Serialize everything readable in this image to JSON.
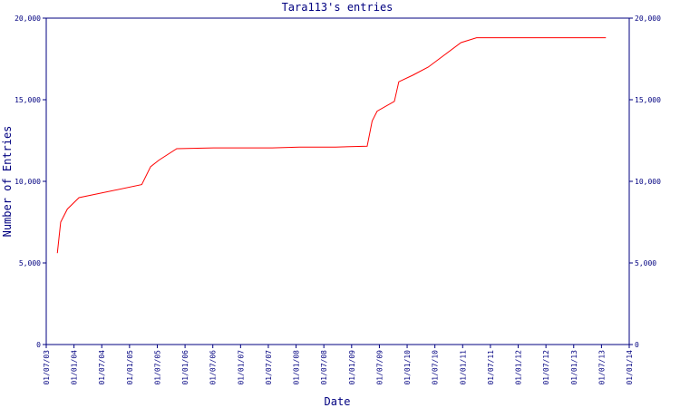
{
  "chart_data": {
    "type": "line",
    "title": "Tara113's entries",
    "x_label": "Date",
    "y_label": "Number of Entries",
    "x": [
      2003.7,
      2003.76,
      2003.88,
      2004.09,
      2005.22,
      2005.38,
      2005.53,
      2005.85,
      2006.51,
      2007.57,
      2008.06,
      2008.71,
      2009.28,
      2009.37,
      2009.46,
      2009.77,
      2009.85,
      2010.1,
      2010.38,
      2010.97,
      2011.25,
      2013.58
    ],
    "series": [
      {
        "name": "Tara113",
        "color": "#ff0000",
        "values": [
          5600,
          7500,
          8300,
          9000,
          9800,
          10900,
          11300,
          12000,
          12050,
          12050,
          12100,
          12100,
          12150,
          13700,
          14300,
          14900,
          16100,
          16500,
          17000,
          18500,
          18800,
          18800
        ]
      }
    ],
    "xlim": [
      2003.5,
      2014.0
    ],
    "xticks": [
      {
        "value": 2003.5,
        "label": "01/07/03"
      },
      {
        "value": 2004.0,
        "label": "01/01/04"
      },
      {
        "value": 2004.5,
        "label": "01/07/04"
      },
      {
        "value": 2005.0,
        "label": "01/01/05"
      },
      {
        "value": 2005.5,
        "label": "01/07/05"
      },
      {
        "value": 2006.0,
        "label": "01/01/06"
      },
      {
        "value": 2006.5,
        "label": "01/07/06"
      },
      {
        "value": 2007.0,
        "label": "01/01/07"
      },
      {
        "value": 2007.5,
        "label": "01/07/07"
      },
      {
        "value": 2008.0,
        "label": "01/01/08"
      },
      {
        "value": 2008.5,
        "label": "01/07/08"
      },
      {
        "value": 2009.0,
        "label": "01/01/09"
      },
      {
        "value": 2009.5,
        "label": "01/07/09"
      },
      {
        "value": 2010.0,
        "label": "01/01/10"
      },
      {
        "value": 2010.5,
        "label": "01/07/10"
      },
      {
        "value": 2011.0,
        "label": "01/01/11"
      },
      {
        "value": 2011.5,
        "label": "01/07/11"
      },
      {
        "value": 2012.0,
        "label": "01/01/12"
      },
      {
        "value": 2012.5,
        "label": "01/07/12"
      },
      {
        "value": 2013.0,
        "label": "01/01/13"
      },
      {
        "value": 2013.5,
        "label": "01/07/13"
      },
      {
        "value": 2014.0,
        "label": "01/01/14"
      }
    ],
    "ylim": [
      0,
      20000
    ],
    "yticks": [
      0,
      {
        "value": 5000,
        "label": "5,000"
      },
      {
        "value": 10000,
        "label": "10,000"
      },
      {
        "value": 15000,
        "label": "15,000"
      },
      {
        "value": 20000,
        "label": "20,000"
      }
    ],
    "grid": false,
    "axis_color": "#000080"
  }
}
